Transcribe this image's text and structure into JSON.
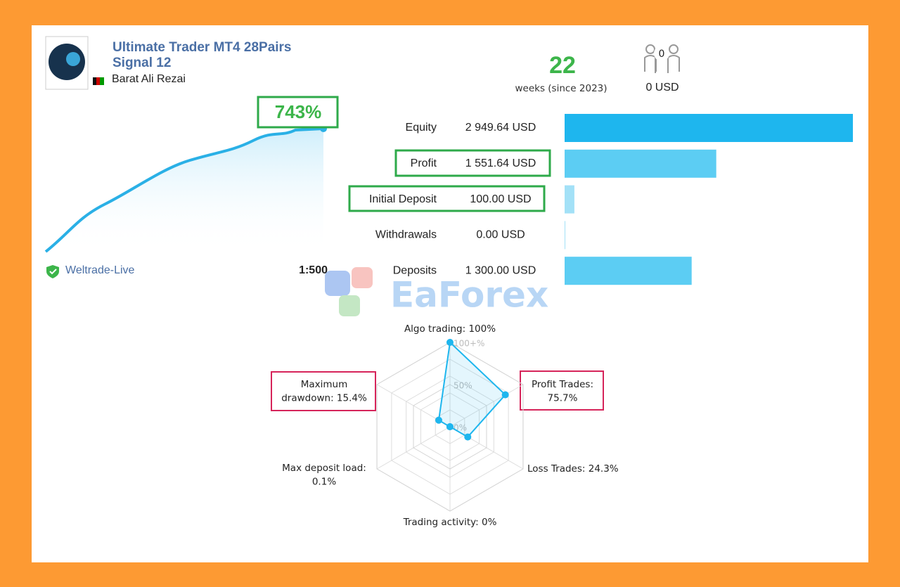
{
  "header": {
    "title": [
      "Ultimate Trader MT4 28Pairs",
      "Signal 12"
    ],
    "author": "Barat Ali Rezai",
    "weeks": 22,
    "weeks_label": "weeks (since 2023)",
    "subscribers": 0,
    "subscribers_value": "0 USD"
  },
  "growth": {
    "label": "743%",
    "broker": "Weltrade-Live",
    "leverage": "1:500"
  },
  "balances": {
    "rows": [
      {
        "name": "Equity",
        "value": 2949.64,
        "label": "2 949.64 USD"
      },
      {
        "name": "Profit",
        "value": 1551.64,
        "label": "1 551.64 USD"
      },
      {
        "name": "Initial Deposit",
        "value": 100,
        "label": "100.00 USD"
      },
      {
        "name": "Withdrawals",
        "value": 0,
        "label": "0.00 USD"
      },
      {
        "name": "Deposits",
        "value": 1300,
        "label": "1 300.00 USD"
      }
    ]
  },
  "watermark": "EaForex",
  "radar": {
    "max": 100,
    "ticks": [
      {
        "value": 100,
        "label": "100+%"
      },
      {
        "value": 50,
        "label": "50%"
      },
      {
        "value": 0,
        "label": "0%"
      }
    ],
    "axes": [
      {
        "label": [
          "Algo trading: 100%"
        ],
        "value": 100
      },
      {
        "label": [
          "Profit Trades:",
          "75.7%"
        ],
        "value": 75.7
      },
      {
        "label": [
          "Loss Trades: 24.3%"
        ],
        "value": 24.3
      },
      {
        "label": [
          "Trading activity: 0%"
        ],
        "value": 0
      },
      {
        "label": [
          "Max deposit load:",
          "0.1%"
        ],
        "value": 0.1
      },
      {
        "label": [
          "Maximum",
          "drawdown: 15.4%"
        ],
        "value": 15.4
      }
    ]
  }
}
